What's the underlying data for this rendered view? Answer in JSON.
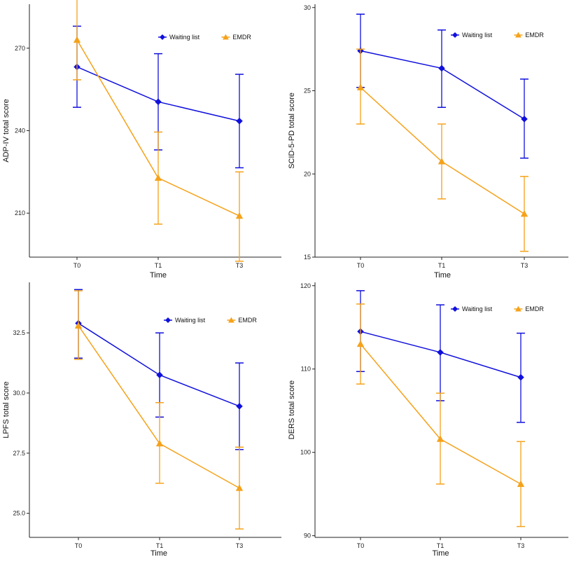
{
  "figure": {
    "xlabel_common": "Time"
  },
  "colors": {
    "waiting_list": "#1010dd",
    "emdr": "#f5a21a",
    "axis": "#222222"
  },
  "legend": {
    "items": [
      {
        "name": "Waiting list",
        "marker": "diamond",
        "color": "#1010dd"
      },
      {
        "name": "EMDR",
        "marker": "triangle",
        "color": "#f5a21a"
      }
    ],
    "placement": "top-right"
  },
  "chart_data": [
    {
      "type": "line",
      "panel": "top-left",
      "title": "",
      "xlabel": "Time",
      "ylabel": "ADP-IV total score",
      "categories": [
        "T0",
        "T1",
        "T3"
      ],
      "ylim": [
        194,
        286
      ],
      "yticks": [
        "210",
        "240",
        "270"
      ],
      "grid": false,
      "series": [
        {
          "name": "Waiting list",
          "values": [
            263.2,
            250.5,
            243.5
          ],
          "error_low": [
            248.5,
            233.0,
            226.5
          ],
          "error_high": [
            278.0,
            268.0,
            260.5
          ]
        },
        {
          "name": "EMDR",
          "values": [
            273.0,
            222.8,
            209.0
          ],
          "error_low": [
            258.5,
            206.0,
            192.5
          ],
          "error_high": [
            289.0,
            239.5,
            225.0
          ]
        }
      ]
    },
    {
      "type": "line",
      "panel": "top-right",
      "title": "",
      "xlabel": "Time",
      "ylabel": "SCID-5-PD total score",
      "categories": [
        "T0",
        "T1",
        "T3"
      ],
      "ylim": [
        15.0,
        30.2
      ],
      "yticks": [
        "15",
        "20",
        "25",
        "30"
      ],
      "grid": false,
      "series": [
        {
          "name": "Waiting list",
          "values": [
            27.4,
            26.35,
            23.3
          ],
          "error_low": [
            25.2,
            24.0,
            20.95
          ],
          "error_high": [
            29.6,
            28.65,
            25.7
          ]
        },
        {
          "name": "EMDR",
          "values": [
            25.2,
            20.75,
            17.6
          ],
          "error_low": [
            23.0,
            18.5,
            15.35
          ],
          "error_high": [
            27.5,
            23.0,
            19.85
          ]
        }
      ]
    },
    {
      "type": "line",
      "panel": "bottom-left",
      "title": "",
      "xlabel": "Time",
      "ylabel": "LPFS total score",
      "categories": [
        "T0",
        "T1",
        "T3"
      ],
      "ylim": [
        24.0,
        34.6
      ],
      "yticks": [
        "25.0",
        "27.5",
        "30.0",
        "32.5"
      ],
      "grid": false,
      "series": [
        {
          "name": "Waiting list",
          "values": [
            32.9,
            30.75,
            29.45
          ],
          "error_low": [
            31.45,
            29.0,
            27.65
          ],
          "error_high": [
            34.3,
            32.5,
            31.25
          ]
        },
        {
          "name": "EMDR",
          "values": [
            32.8,
            27.9,
            26.05
          ],
          "error_low": [
            31.4,
            26.25,
            24.35
          ],
          "error_high": [
            34.25,
            29.6,
            27.75
          ]
        }
      ]
    },
    {
      "type": "line",
      "panel": "bottom-right",
      "title": "",
      "xlabel": "Time",
      "ylabel": "DERS total score",
      "categories": [
        "T0",
        "T1",
        "T3"
      ],
      "ylim": [
        89.8,
        120.4
      ],
      "yticks": [
        "90",
        "100",
        "110",
        "120"
      ],
      "grid": false,
      "series": [
        {
          "name": "Waiting list",
          "values": [
            114.5,
            112.0,
            109.0
          ],
          "error_low": [
            109.7,
            106.2,
            103.6
          ],
          "error_high": [
            119.4,
            117.7,
            114.3
          ]
        },
        {
          "name": "EMDR",
          "values": [
            113.0,
            101.6,
            96.2
          ],
          "error_low": [
            108.2,
            96.2,
            91.1
          ],
          "error_high": [
            117.8,
            107.1,
            101.3
          ]
        }
      ]
    }
  ]
}
